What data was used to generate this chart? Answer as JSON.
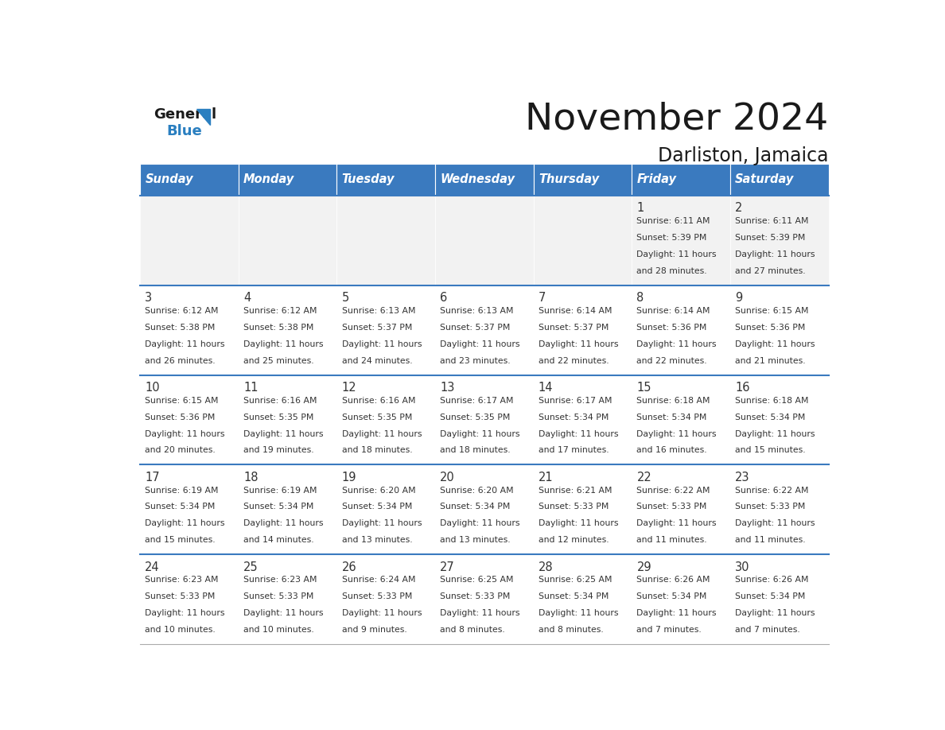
{
  "title": "November 2024",
  "subtitle": "Darliston, Jamaica",
  "days_of_week": [
    "Sunday",
    "Monday",
    "Tuesday",
    "Wednesday",
    "Thursday",
    "Friday",
    "Saturday"
  ],
  "header_bg": "#3a7abf",
  "header_text_color": "#ffffff",
  "separator_color": "#3a7abf",
  "calendar_data": [
    [
      null,
      null,
      null,
      null,
      null,
      {
        "day": 1,
        "sunrise": "6:11 AM",
        "sunset": "5:39 PM",
        "daylight_hours": 11,
        "daylight_minutes": 28
      },
      {
        "day": 2,
        "sunrise": "6:11 AM",
        "sunset": "5:39 PM",
        "daylight_hours": 11,
        "daylight_minutes": 27
      }
    ],
    [
      {
        "day": 3,
        "sunrise": "6:12 AM",
        "sunset": "5:38 PM",
        "daylight_hours": 11,
        "daylight_minutes": 26
      },
      {
        "day": 4,
        "sunrise": "6:12 AM",
        "sunset": "5:38 PM",
        "daylight_hours": 11,
        "daylight_minutes": 25
      },
      {
        "day": 5,
        "sunrise": "6:13 AM",
        "sunset": "5:37 PM",
        "daylight_hours": 11,
        "daylight_minutes": 24
      },
      {
        "day": 6,
        "sunrise": "6:13 AM",
        "sunset": "5:37 PM",
        "daylight_hours": 11,
        "daylight_minutes": 23
      },
      {
        "day": 7,
        "sunrise": "6:14 AM",
        "sunset": "5:37 PM",
        "daylight_hours": 11,
        "daylight_minutes": 22
      },
      {
        "day": 8,
        "sunrise": "6:14 AM",
        "sunset": "5:36 PM",
        "daylight_hours": 11,
        "daylight_minutes": 22
      },
      {
        "day": 9,
        "sunrise": "6:15 AM",
        "sunset": "5:36 PM",
        "daylight_hours": 11,
        "daylight_minutes": 21
      }
    ],
    [
      {
        "day": 10,
        "sunrise": "6:15 AM",
        "sunset": "5:36 PM",
        "daylight_hours": 11,
        "daylight_minutes": 20
      },
      {
        "day": 11,
        "sunrise": "6:16 AM",
        "sunset": "5:35 PM",
        "daylight_hours": 11,
        "daylight_minutes": 19
      },
      {
        "day": 12,
        "sunrise": "6:16 AM",
        "sunset": "5:35 PM",
        "daylight_hours": 11,
        "daylight_minutes": 18
      },
      {
        "day": 13,
        "sunrise": "6:17 AM",
        "sunset": "5:35 PM",
        "daylight_hours": 11,
        "daylight_minutes": 18
      },
      {
        "day": 14,
        "sunrise": "6:17 AM",
        "sunset": "5:34 PM",
        "daylight_hours": 11,
        "daylight_minutes": 17
      },
      {
        "day": 15,
        "sunrise": "6:18 AM",
        "sunset": "5:34 PM",
        "daylight_hours": 11,
        "daylight_minutes": 16
      },
      {
        "day": 16,
        "sunrise": "6:18 AM",
        "sunset": "5:34 PM",
        "daylight_hours": 11,
        "daylight_minutes": 15
      }
    ],
    [
      {
        "day": 17,
        "sunrise": "6:19 AM",
        "sunset": "5:34 PM",
        "daylight_hours": 11,
        "daylight_minutes": 15
      },
      {
        "day": 18,
        "sunrise": "6:19 AM",
        "sunset": "5:34 PM",
        "daylight_hours": 11,
        "daylight_minutes": 14
      },
      {
        "day": 19,
        "sunrise": "6:20 AM",
        "sunset": "5:34 PM",
        "daylight_hours": 11,
        "daylight_minutes": 13
      },
      {
        "day": 20,
        "sunrise": "6:20 AM",
        "sunset": "5:34 PM",
        "daylight_hours": 11,
        "daylight_minutes": 13
      },
      {
        "day": 21,
        "sunrise": "6:21 AM",
        "sunset": "5:33 PM",
        "daylight_hours": 11,
        "daylight_minutes": 12
      },
      {
        "day": 22,
        "sunrise": "6:22 AM",
        "sunset": "5:33 PM",
        "daylight_hours": 11,
        "daylight_minutes": 11
      },
      {
        "day": 23,
        "sunrise": "6:22 AM",
        "sunset": "5:33 PM",
        "daylight_hours": 11,
        "daylight_minutes": 11
      }
    ],
    [
      {
        "day": 24,
        "sunrise": "6:23 AM",
        "sunset": "5:33 PM",
        "daylight_hours": 11,
        "daylight_minutes": 10
      },
      {
        "day": 25,
        "sunrise": "6:23 AM",
        "sunset": "5:33 PM",
        "daylight_hours": 11,
        "daylight_minutes": 10
      },
      {
        "day": 26,
        "sunrise": "6:24 AM",
        "sunset": "5:33 PM",
        "daylight_hours": 11,
        "daylight_minutes": 9
      },
      {
        "day": 27,
        "sunrise": "6:25 AM",
        "sunset": "5:33 PM",
        "daylight_hours": 11,
        "daylight_minutes": 8
      },
      {
        "day": 28,
        "sunrise": "6:25 AM",
        "sunset": "5:34 PM",
        "daylight_hours": 11,
        "daylight_minutes": 8
      },
      {
        "day": 29,
        "sunrise": "6:26 AM",
        "sunset": "5:34 PM",
        "daylight_hours": 11,
        "daylight_minutes": 7
      },
      {
        "day": 30,
        "sunrise": "6:26 AM",
        "sunset": "5:34 PM",
        "daylight_hours": 11,
        "daylight_minutes": 7
      }
    ]
  ]
}
